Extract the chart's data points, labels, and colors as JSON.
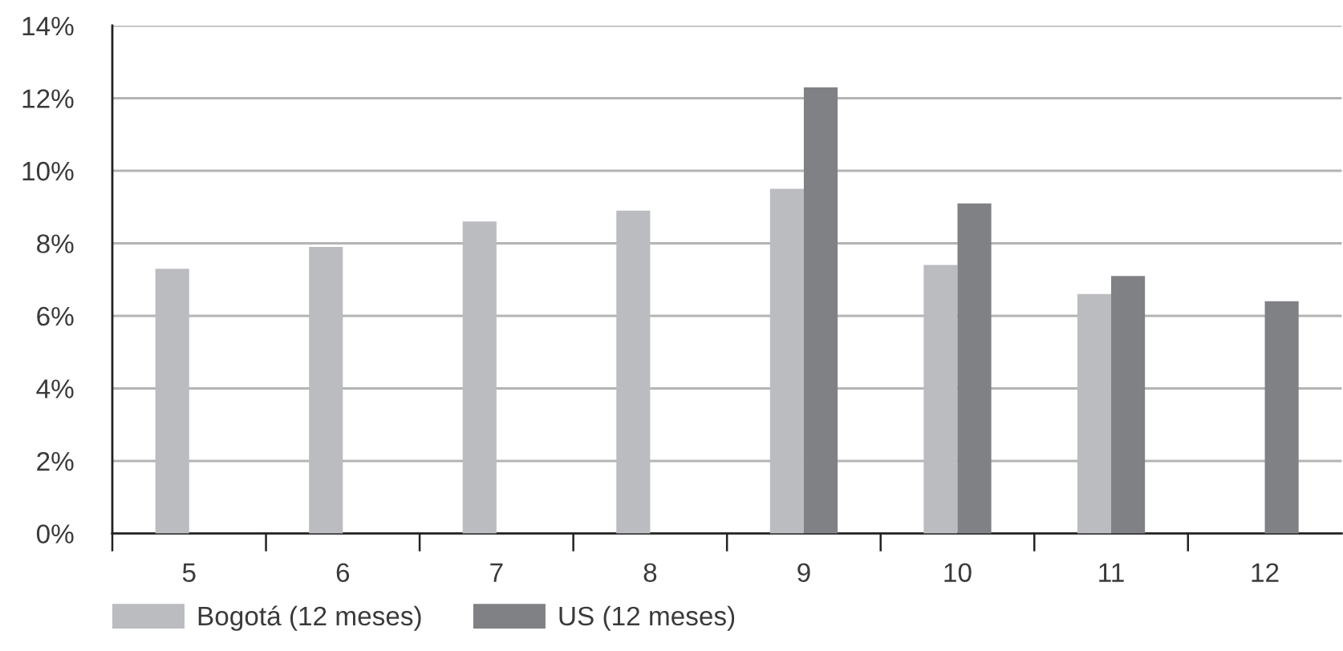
{
  "chart_data": {
    "type": "bar",
    "categories": [
      "5",
      "6",
      "7",
      "8",
      "9",
      "10",
      "11",
      "12"
    ],
    "series": [
      {
        "name": "Bogotá (12 meses)",
        "color": "#bbbcc0",
        "values": [
          7.3,
          7.9,
          8.6,
          8.9,
          9.5,
          7.4,
          6.6,
          null
        ]
      },
      {
        "name": "US (12 meses)",
        "color": "#808184",
        "values": [
          null,
          null,
          null,
          null,
          12.3,
          9.1,
          7.1,
          6.4
        ]
      }
    ],
    "ylim": [
      0,
      14
    ],
    "yticks": [
      {
        "value": 0,
        "label": "0%"
      },
      {
        "value": 2,
        "label": "2%"
      },
      {
        "value": 4,
        "label": "4%"
      },
      {
        "value": 6,
        "label": "6%"
      },
      {
        "value": 8,
        "label": "8%"
      },
      {
        "value": 10,
        "label": "10%"
      },
      {
        "value": 12,
        "label": "12%"
      },
      {
        "value": 14,
        "label": "14%"
      }
    ],
    "grid": "y",
    "legend": "bottom"
  }
}
